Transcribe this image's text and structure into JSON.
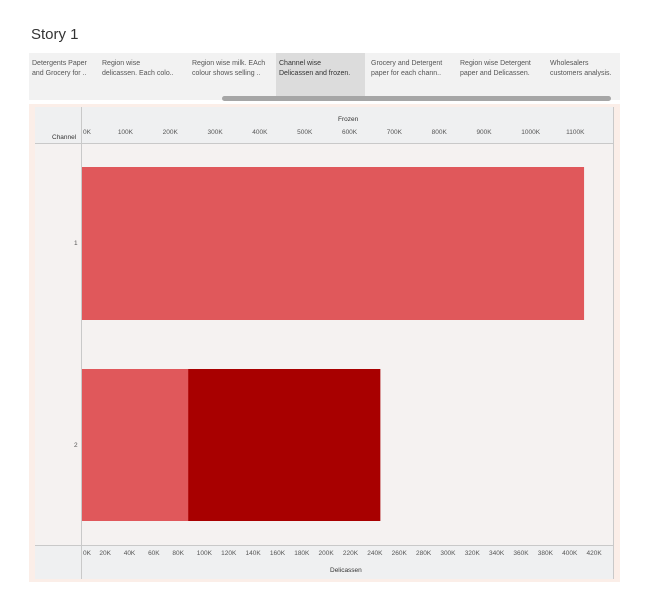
{
  "story": {
    "title": "Story 1"
  },
  "navigator": {
    "active_index": 3,
    "items": [
      {
        "line1": "Detergents Paper",
        "line2": "and Grocery for .."
      },
      {
        "line1": "Region wise",
        "line2": "delicassen. Each colo.."
      },
      {
        "line1": "Region wise milk. EAch",
        "line2": "colour shows selling .."
      },
      {
        "line1": "Channel wise",
        "line2": "Delicassen and frozen."
      },
      {
        "line1": "Grocery and Detergent",
        "line2": "paper for each chann.."
      },
      {
        "line1": "Region wise Detergent",
        "line2": "paper and Delicassen."
      },
      {
        "line1": "Wholesalers",
        "line2": "customers analysis."
      }
    ]
  },
  "colors": {
    "frozen": "#e0585b",
    "delicassen": "#a80000"
  },
  "chart_data": {
    "type": "bar",
    "orientation": "horizontal",
    "row_header": "Channel",
    "categories": [
      "1",
      "2"
    ],
    "series": [
      {
        "name": "Frozen",
        "values": [
          1120000,
          237000
        ]
      },
      {
        "name": "Delicassen",
        "values": [
          null,
          245000
        ]
      }
    ],
    "axis_top": {
      "title": "Frozen",
      "range": [
        0,
        1160000
      ],
      "ticks": [
        "0K",
        "100K",
        "200K",
        "300K",
        "400K",
        "500K",
        "600K",
        "700K",
        "800K",
        "900K",
        "1000K",
        "1100K"
      ]
    },
    "axis_bottom": {
      "title": "Delicassen",
      "range": [
        0,
        427000
      ],
      "ticks": [
        "0K",
        "20K",
        "40K",
        "60K",
        "80K",
        "100K",
        "120K",
        "140K",
        "160K",
        "180K",
        "200K",
        "220K",
        "240K",
        "260K",
        "280K",
        "300K",
        "320K",
        "340K",
        "360K",
        "380K",
        "400K",
        "420K"
      ]
    },
    "grid": false
  }
}
